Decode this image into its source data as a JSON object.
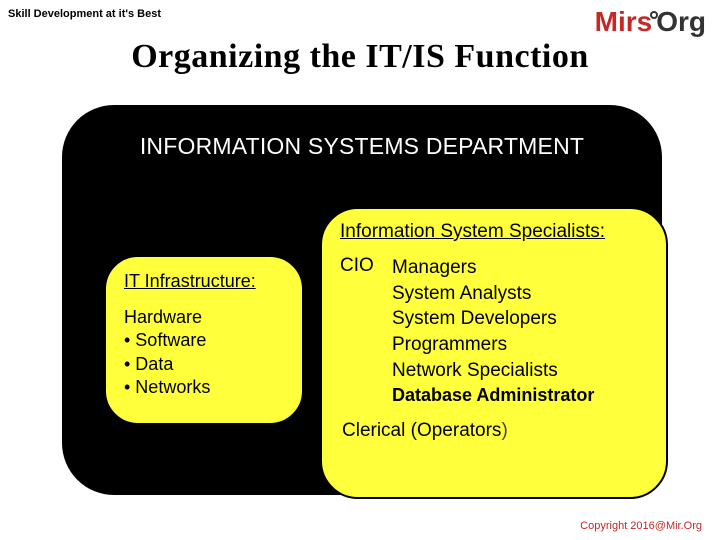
{
  "header": {
    "tagline": "Skill Development at it's Best",
    "logo": {
      "brand": "Mirs",
      "suffix": "Org"
    }
  },
  "title": "Organizing the IT/IS Function",
  "diagram": {
    "outer": {
      "heading": "INFORMATION SYSTEMS DEPARTMENT",
      "bg_color": "#000000",
      "text_color": "#ffffff",
      "border_radius": 52
    },
    "left_box": {
      "heading": "IT Infrastructure:",
      "items": [
        "Hardware",
        "• Software",
        "• Data",
        "• Networks"
      ],
      "bg_color": "#ffff3b",
      "text_color": "#000000",
      "border_radius": 34
    },
    "right_box": {
      "heading": "Information System Specialists:",
      "cio_label": "CIO",
      "roles": [
        "Managers",
        "System Analysts",
        "System Developers",
        "Programmers",
        "Network Specialists"
      ],
      "dba": "Database Administrator",
      "clerical_prefix": "Clerical (Operators",
      "clerical_suffix": ")",
      "bg_color": "#ffff3b",
      "text_color": "#000000",
      "border_radius": 38
    }
  },
  "footer": {
    "copyright": "Copyright 2016@Mir.Org"
  },
  "style": {
    "title_fontsize": 34,
    "dept_fontsize": 23,
    "body_fontsize": 18,
    "page_bg": "#ffffff",
    "accent_color": "#c62828"
  }
}
